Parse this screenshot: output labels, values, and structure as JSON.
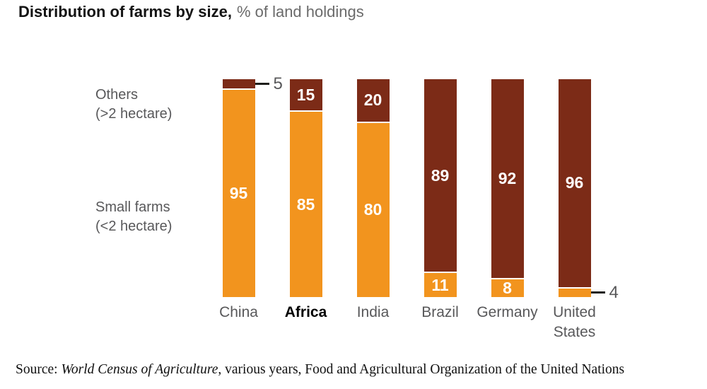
{
  "title": {
    "main": "Distribution of farms by size,",
    "sub": "% of land holdings"
  },
  "side_labels": {
    "others": {
      "line1": "Others",
      "line2": "(>2 hectare)"
    },
    "small": {
      "line1": "Small farms",
      "line2": "(<2 hectare)"
    }
  },
  "source": {
    "prefix": "Source: ",
    "italic": "World Census of Agriculture",
    "suffix": ", various years, Food and Agricultural Organization of the United Nations"
  },
  "colors": {
    "small_farms": "#F2941E",
    "others": "#7C2B17",
    "value_text": "#FFFFFF",
    "axis_text": "#58585A",
    "callout_line": "#1D1D1B"
  },
  "chart_data": {
    "type": "bar",
    "stacked": true,
    "title": "Distribution of farms by size",
    "unit": "% of land holdings",
    "ylim": [
      0,
      100
    ],
    "grid": false,
    "categories": [
      "China",
      "Africa",
      "India",
      "Brazil",
      "Germany",
      "United States"
    ],
    "bold_category": "Africa",
    "series": [
      {
        "name": "Small farms (<2 hectare)",
        "color_key": "small_farms",
        "position": "bottom",
        "values": [
          95,
          85,
          80,
          11,
          8,
          4
        ]
      },
      {
        "name": "Others (>2 hectare)",
        "color_key": "others",
        "position": "top",
        "values": [
          5,
          15,
          20,
          89,
          92,
          96
        ]
      }
    ],
    "callouts": [
      {
        "category": "China",
        "series": "Others (>2 hectare)",
        "value": 5
      },
      {
        "category": "United States",
        "series": "Small farms (<2 hectare)",
        "value": 4
      }
    ]
  }
}
